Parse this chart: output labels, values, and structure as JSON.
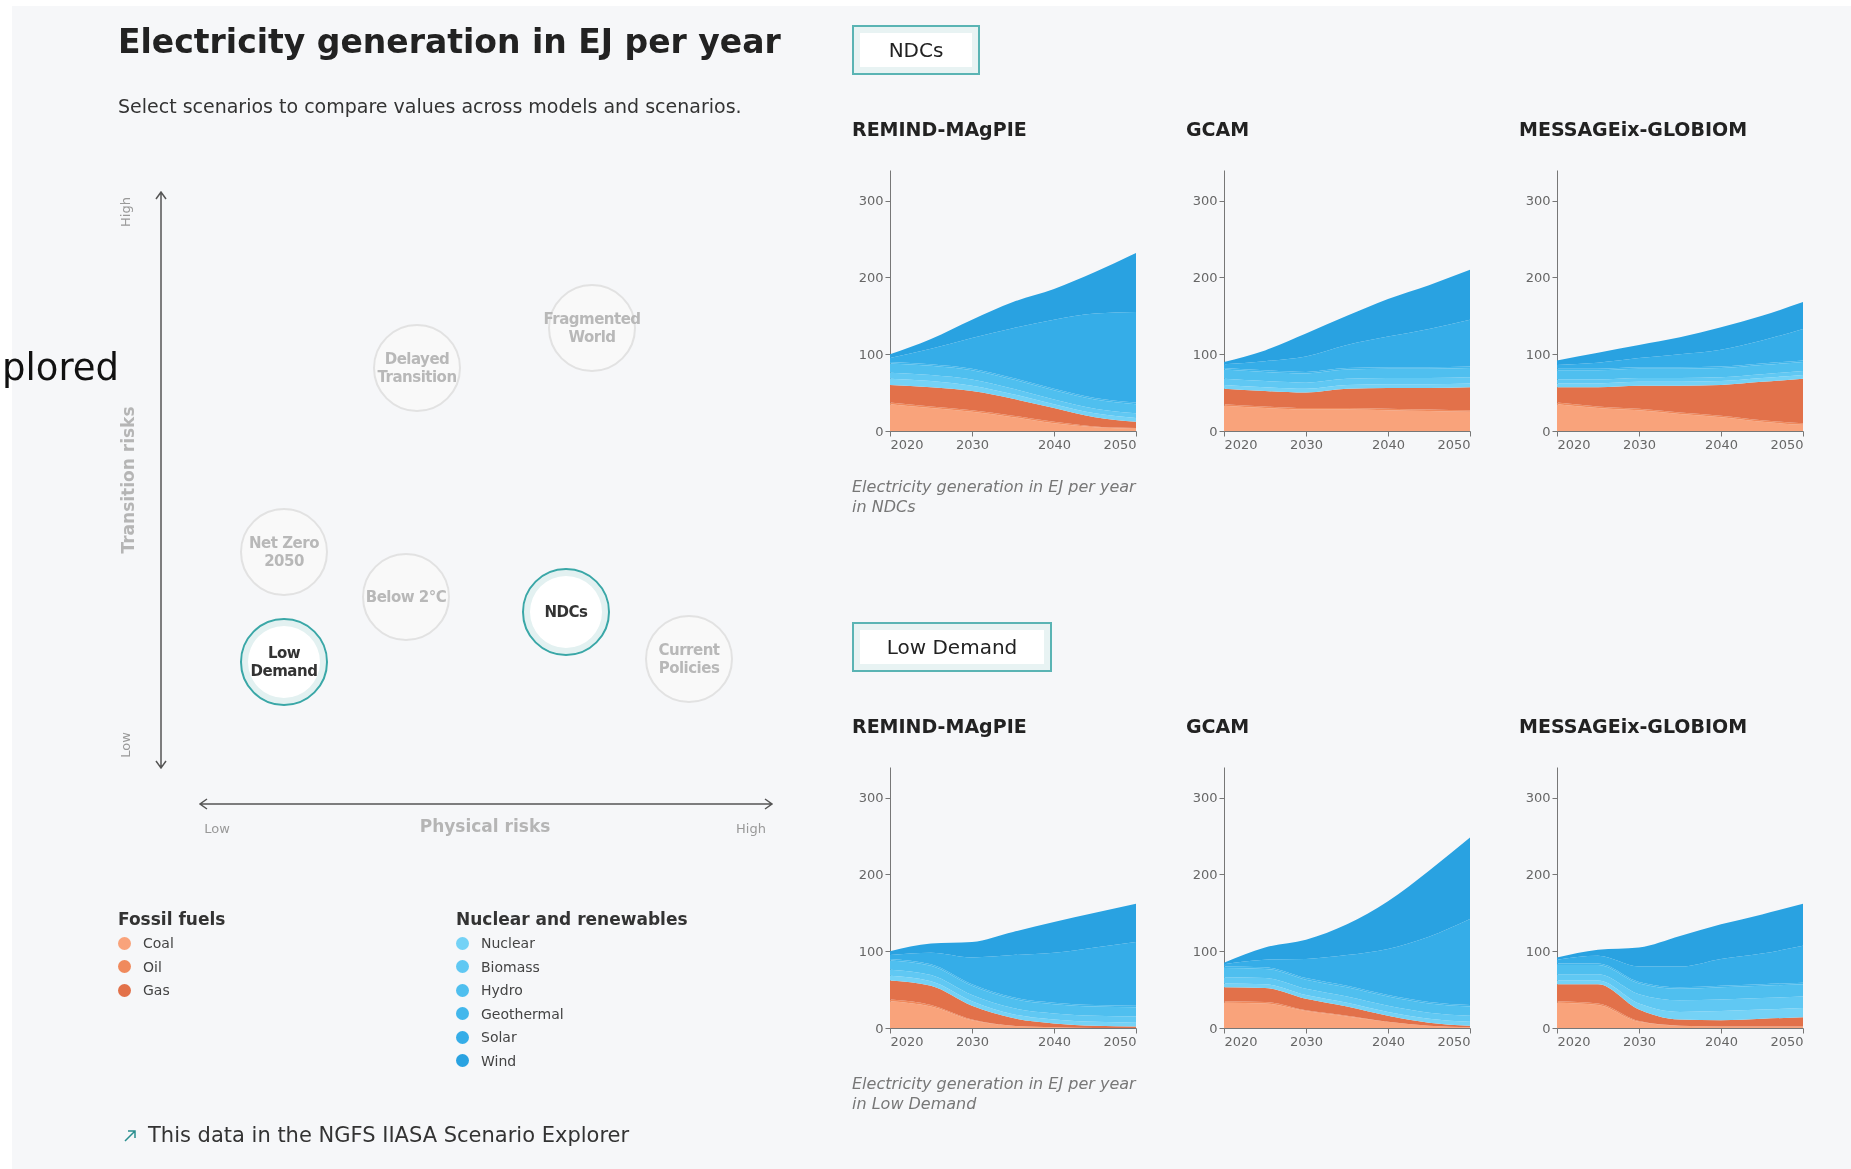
{
  "chart_data": [
    {
      "type": "other",
      "title": "Electricity generation in EJ per year",
      "subtitle": "Select scenarios to compare values across models and scenarios.",
      "xlabel": "Physical risks",
      "ylabel": "Transition risks",
      "annotations": [
        "High",
        "Low",
        "Low",
        "High",
        "Fragmented World",
        "Delayed Transition",
        "Net Zero 2050",
        "Below 2°C",
        "NDCs",
        "Current Policies",
        "Low Demand",
        "Fossil fuels",
        "Nuclear and renewables",
        "This data in the NGFS IIASA Scenario Explorer",
        "plored"
      ]
    },
    {
      "type": "area",
      "title": "REMIND-MAgPIE",
      "stacked": true,
      "legend": "left",
      "grid": false,
      "x": [
        2020,
        2025,
        2030,
        2035,
        2040,
        2045,
        2050
      ],
      "xlim": [
        2020,
        2050
      ],
      "xticks": [
        2020,
        2030,
        2040,
        2050
      ],
      "ylim": [
        0,
        340
      ],
      "yticks": [
        0,
        100,
        200,
        300
      ],
      "annotations": [
        "NDCs",
        "Electricity generation in EJ per year in NDCs"
      ],
      "series": [
        {
          "name": "Coal",
          "color": "#f9a37b",
          "values": [
            35,
            30,
            25,
            18,
            10,
            5,
            3
          ]
        },
        {
          "name": "Oil",
          "color": "#f08a5d",
          "values": [
            2,
            2,
            2,
            2,
            2,
            1,
            1
          ]
        },
        {
          "name": "Gas",
          "color": "#e2714a",
          "values": [
            23,
            25,
            25,
            22,
            18,
            12,
            8
          ]
        },
        {
          "name": "Nuclear",
          "color": "#74d2f6",
          "values": [
            8,
            8,
            7,
            6,
            5,
            5,
            5
          ]
        },
        {
          "name": "Biomass",
          "color": "#60c8f3",
          "values": [
            8,
            8,
            8,
            7,
            6,
            6,
            6
          ]
        },
        {
          "name": "Hydro",
          "color": "#4fbfef",
          "values": [
            12,
            12,
            12,
            12,
            12,
            12,
            12
          ]
        },
        {
          "name": "Geothermal",
          "color": "#42b7ec",
          "values": [
            2,
            2,
            2,
            2,
            2,
            2,
            2
          ]
        },
        {
          "name": "Solar",
          "color": "#35ade8",
          "values": [
            5,
            20,
            40,
            65,
            90,
            110,
            118
          ]
        },
        {
          "name": "Wind",
          "color": "#29a2e1",
          "values": [
            5,
            13,
            24,
            34,
            40,
            54,
            77
          ]
        }
      ]
    },
    {
      "type": "area",
      "title": "GCAM",
      "stacked": true,
      "grid": false,
      "x": [
        2020,
        2025,
        2030,
        2035,
        2040,
        2045,
        2050
      ],
      "xlim": [
        2020,
        2050
      ],
      "xticks": [
        2020,
        2030,
        2040,
        2050
      ],
      "ylim": [
        0,
        340
      ],
      "yticks": [
        0,
        100,
        200,
        300
      ],
      "series": [
        {
          "color": "#f9a37b",
          "values": [
            33,
            30,
            28,
            28,
            27,
            26,
            25
          ]
        },
        {
          "color": "#f08a5d",
          "values": [
            2,
            2,
            2,
            2,
            2,
            2,
            2
          ]
        },
        {
          "color": "#e2714a",
          "values": [
            20,
            20,
            20,
            25,
            27,
            28,
            30
          ]
        },
        {
          "color": "#74d2f6",
          "values": [
            5,
            5,
            5,
            5,
            5,
            5,
            5
          ]
        },
        {
          "color": "#60c8f3",
          "values": [
            8,
            8,
            8,
            8,
            8,
            8,
            8
          ]
        },
        {
          "color": "#4fbfef",
          "values": [
            12,
            12,
            12,
            12,
            12,
            12,
            12
          ]
        },
        {
          "color": "#42b7ec",
          "values": [
            2,
            2,
            2,
            2,
            2,
            2,
            2
          ]
        },
        {
          "color": "#35ade8",
          "values": [
            5,
            12,
            20,
            30,
            40,
            50,
            61
          ]
        },
        {
          "color": "#29a2e1",
          "values": [
            3,
            14,
            30,
            38,
            49,
            57,
            65
          ]
        }
      ]
    },
    {
      "type": "area",
      "title": "MESSAGEix-GLOBIOM",
      "stacked": true,
      "grid": false,
      "x": [
        2020,
        2025,
        2030,
        2035,
        2040,
        2045,
        2050
      ],
      "xlim": [
        2020,
        2050
      ],
      "xticks": [
        2020,
        2030,
        2040,
        2050
      ],
      "ylim": [
        0,
        340
      ],
      "yticks": [
        0,
        100,
        200,
        300
      ],
      "series": [
        {
          "color": "#f9a37b",
          "values": [
            35,
            30,
            27,
            22,
            18,
            12,
            8
          ]
        },
        {
          "color": "#f08a5d",
          "values": [
            2,
            2,
            2,
            2,
            2,
            2,
            2
          ]
        },
        {
          "color": "#e2714a",
          "values": [
            20,
            25,
            30,
            35,
            40,
            50,
            58
          ]
        },
        {
          "color": "#74d2f6",
          "values": [
            5,
            5,
            5,
            5,
            5,
            5,
            5
          ]
        },
        {
          "color": "#60c8f3",
          "values": [
            5,
            5,
            5,
            5,
            5,
            5,
            5
          ]
        },
        {
          "color": "#4fbfef",
          "values": [
            12,
            12,
            12,
            12,
            12,
            12,
            12
          ]
        },
        {
          "color": "#42b7ec",
          "values": [
            2,
            2,
            2,
            2,
            2,
            2,
            2
          ]
        },
        {
          "color": "#35ade8",
          "values": [
            5,
            8,
            12,
            17,
            22,
            30,
            41
          ]
        },
        {
          "color": "#29a2e1",
          "values": [
            6,
            13,
            17,
            22,
            29,
            32,
            35
          ]
        }
      ]
    },
    {
      "type": "area",
      "title": "REMIND-MAgPIE",
      "stacked": true,
      "grid": false,
      "x": [
        2020,
        2025,
        2030,
        2035,
        2040,
        2045,
        2050
      ],
      "xlim": [
        2020,
        2050
      ],
      "xticks": [
        2020,
        2030,
        2040,
        2050
      ],
      "ylim": [
        0,
        340
      ],
      "yticks": [
        0,
        100,
        200,
        300
      ],
      "annotations": [
        "Low Demand",
        "Electricity generation in EJ per year in Low Demand"
      ],
      "series": [
        {
          "color": "#f9a37b",
          "values": [
            35,
            28,
            10,
            3,
            1,
            0,
            0
          ]
        },
        {
          "color": "#f08a5d",
          "values": [
            2,
            2,
            1,
            0,
            0,
            0,
            0
          ]
        },
        {
          "color": "#e2714a",
          "values": [
            25,
            25,
            18,
            10,
            5,
            3,
            2
          ]
        },
        {
          "color": "#74d2f6",
          "values": [
            6,
            6,
            6,
            5,
            5,
            5,
            5
          ]
        },
        {
          "color": "#60c8f3",
          "values": [
            8,
            8,
            8,
            8,
            8,
            8,
            8
          ]
        },
        {
          "color": "#4fbfef",
          "values": [
            12,
            12,
            12,
            12,
            12,
            12,
            12
          ]
        },
        {
          "color": "#42b7ec",
          "values": [
            2,
            2,
            2,
            2,
            2,
            2,
            2
          ]
        },
        {
          "color": "#35ade8",
          "values": [
            5,
            15,
            35,
            55,
            65,
            75,
            83
          ]
        },
        {
          "color": "#29a2e1",
          "values": [
            5,
            12,
            20,
            30,
            40,
            45,
            50
          ]
        }
      ]
    },
    {
      "type": "area",
      "title": "GCAM",
      "stacked": true,
      "grid": false,
      "x": [
        2020,
        2025,
        2030,
        2035,
        2040,
        2045,
        2050
      ],
      "xlim": [
        2020,
        2050
      ],
      "xticks": [
        2020,
        2030,
        2040,
        2050
      ],
      "ylim": [
        0,
        340
      ],
      "yticks": [
        0,
        100,
        200,
        300
      ],
      "series": [
        {
          "color": "#f9a37b",
          "values": [
            33,
            32,
            22,
            15,
            8,
            3,
            1
          ]
        },
        {
          "color": "#f08a5d",
          "values": [
            2,
            2,
            1,
            1,
            0,
            0,
            0
          ]
        },
        {
          "color": "#e2714a",
          "values": [
            18,
            18,
            15,
            12,
            8,
            4,
            2
          ]
        },
        {
          "color": "#74d2f6",
          "values": [
            5,
            5,
            5,
            5,
            5,
            5,
            5
          ]
        },
        {
          "color": "#60c8f3",
          "values": [
            8,
            8,
            8,
            8,
            8,
            8,
            8
          ]
        },
        {
          "color": "#4fbfef",
          "values": [
            12,
            12,
            12,
            12,
            12,
            12,
            12
          ]
        },
        {
          "color": "#42b7ec",
          "values": [
            2,
            2,
            2,
            2,
            2,
            2,
            2
          ]
        },
        {
          "color": "#35ade8",
          "values": [
            3,
            10,
            25,
            40,
            60,
            85,
            112
          ]
        },
        {
          "color": "#29a2e1",
          "values": [
            2,
            16,
            25,
            40,
            62,
            86,
            106
          ]
        }
      ]
    },
    {
      "type": "area",
      "title": "MESSAGEix-GLOBIOM",
      "stacked": true,
      "grid": false,
      "x": [
        2020,
        2025,
        2030,
        2035,
        2040,
        2045,
        2050
      ],
      "xlim": [
        2020,
        2050
      ],
      "xticks": [
        2020,
        2030,
        2040,
        2050
      ],
      "ylim": [
        0,
        340
      ],
      "yticks": [
        0,
        100,
        200,
        300
      ],
      "series": [
        {
          "color": "#f9a37b",
          "values": [
            33,
            30,
            8,
            3,
            2,
            2,
            2
          ]
        },
        {
          "color": "#f08a5d",
          "values": [
            2,
            2,
            1,
            0,
            0,
            0,
            0
          ]
        },
        {
          "color": "#e2714a",
          "values": [
            22,
            25,
            15,
            8,
            8,
            10,
            12
          ]
        },
        {
          "color": "#74d2f6",
          "values": [
            5,
            5,
            8,
            10,
            12,
            12,
            12
          ]
        },
        {
          "color": "#60c8f3",
          "values": [
            8,
            8,
            12,
            15,
            15,
            15,
            15
          ]
        },
        {
          "color": "#4fbfef",
          "values": [
            12,
            12,
            14,
            15,
            16,
            16,
            16
          ]
        },
        {
          "color": "#42b7ec",
          "values": [
            2,
            2,
            2,
            2,
            2,
            2,
            2
          ]
        },
        {
          "color": "#35ade8",
          "values": [
            5,
            10,
            20,
            27,
            35,
            40,
            48
          ]
        },
        {
          "color": "#29a2e1",
          "values": [
            3,
            8,
            25,
            40,
            45,
            51,
            55
          ]
        }
      ]
    }
  ]
}
